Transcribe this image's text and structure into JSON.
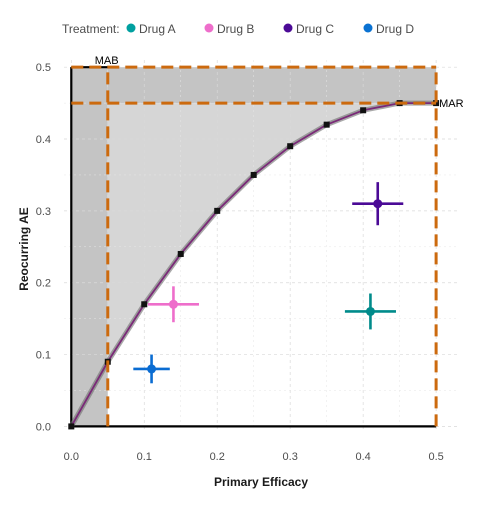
{
  "chart_data": {
    "type": "scatter",
    "xlabel": "Primary Efficacy",
    "ylabel": "Reocurring AE",
    "xlim": [
      -0.01,
      0.53
    ],
    "ylim": [
      -0.005,
      0.51
    ],
    "x_ticks": [
      "0.0",
      "0.1",
      "0.2",
      "0.3",
      "0.4",
      "0.5"
    ],
    "y_ticks": [
      "0.0",
      "0.1",
      "0.2",
      "0.3",
      "0.4",
      "0.5"
    ],
    "grid": true,
    "legend": {
      "title": "Treatment:",
      "position": "top",
      "entries": [
        {
          "name": "Drug A",
          "color": "#00a0a0"
        },
        {
          "name": "Drug B",
          "color": "#ee6ecb"
        },
        {
          "name": "Drug C",
          "color": "#4b0a96"
        },
        {
          "name": "Drug D",
          "color": "#0a72d2"
        }
      ]
    },
    "series": [
      {
        "name": "Drug A",
        "color": "#008b8b",
        "x": 0.41,
        "y": 0.16,
        "x_err": [
          0.375,
          0.445
        ],
        "y_err": [
          0.135,
          0.185
        ]
      },
      {
        "name": "Drug B",
        "color": "#ee6ecb",
        "x": 0.14,
        "y": 0.17,
        "x_err": [
          0.105,
          0.175
        ],
        "y_err": [
          0.145,
          0.195
        ]
      },
      {
        "name": "Drug C",
        "color": "#4b0a96",
        "x": 0.42,
        "y": 0.31,
        "x_err": [
          0.385,
          0.455
        ],
        "y_err": [
          0.28,
          0.34
        ]
      },
      {
        "name": "Drug D",
        "color": "#0a6cd2",
        "x": 0.11,
        "y": 0.08,
        "x_err": [
          0.085,
          0.135
        ],
        "y_err": [
          0.06,
          0.1
        ]
      }
    ],
    "benefit_risk_curve": {
      "x": [
        0.0,
        0.05,
        0.1,
        0.15,
        0.2,
        0.25,
        0.3,
        0.35,
        0.4,
        0.45,
        0.5
      ],
      "y": [
        0.0,
        0.09,
        0.17,
        0.24,
        0.3,
        0.35,
        0.39,
        0.42,
        0.44,
        0.45,
        0.45
      ],
      "color": "#7a2a78"
    },
    "thresholds": {
      "MAB": 0.05,
      "MAR": 0.45,
      "x_max": 0.5,
      "y_max": 0.5,
      "color": "#cc6a0e"
    },
    "annotations": {
      "mab_label": "MAB",
      "mar_label": "MAR"
    }
  }
}
